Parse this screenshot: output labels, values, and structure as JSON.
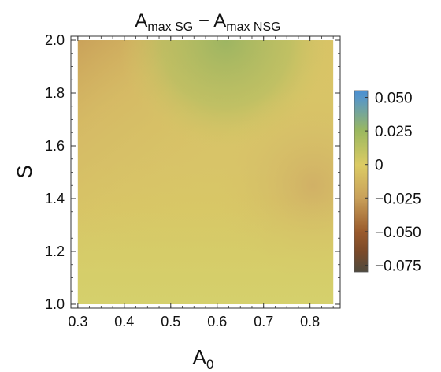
{
  "chart_data": {
    "type": "heatmap",
    "title": {
      "part1_main": "A",
      "part1_sub": "max SG",
      "separator": " − ",
      "part2_main": "A",
      "part2_sub": "max NSG"
    },
    "xlabel": {
      "main": "A",
      "sub": "0"
    },
    "ylabel": "S",
    "xlim": [
      0.285,
      0.865
    ],
    "ylim": [
      0.985,
      2.015
    ],
    "x_ticks": [
      0.3,
      0.4,
      0.5,
      0.6,
      0.7,
      0.8
    ],
    "x_tick_labels": [
      "0.3",
      "0.4",
      "0.5",
      "0.6",
      "0.7",
      "0.8"
    ],
    "y_ticks": [
      1.0,
      1.2,
      1.4,
      1.6,
      1.8,
      2.0
    ],
    "y_tick_labels": [
      "1.0",
      "1.2",
      "1.4",
      "1.6",
      "1.8",
      "2.0"
    ],
    "colorbar": {
      "range": [
        -0.08,
        0.055
      ],
      "ticks": [
        0.05,
        0.025,
        0,
        -0.025,
        -0.05,
        -0.075
      ],
      "tick_labels": [
        "0.050",
        "0.025",
        "0",
        "−0.025",
        "−0.050",
        "−0.075"
      ],
      "colors": [
        [
          -0.08,
          "#4f4a3e"
        ],
        [
          -0.065,
          "#7a4a2a"
        ],
        [
          -0.05,
          "#9a5a2c"
        ],
        [
          -0.025,
          "#c9a15a"
        ],
        [
          0.0,
          "#dccb64"
        ],
        [
          0.025,
          "#9ab860"
        ],
        [
          0.05,
          "#5796c8"
        ],
        [
          0.055,
          "#4a8fd0"
        ]
      ]
    },
    "grid": false
  }
}
